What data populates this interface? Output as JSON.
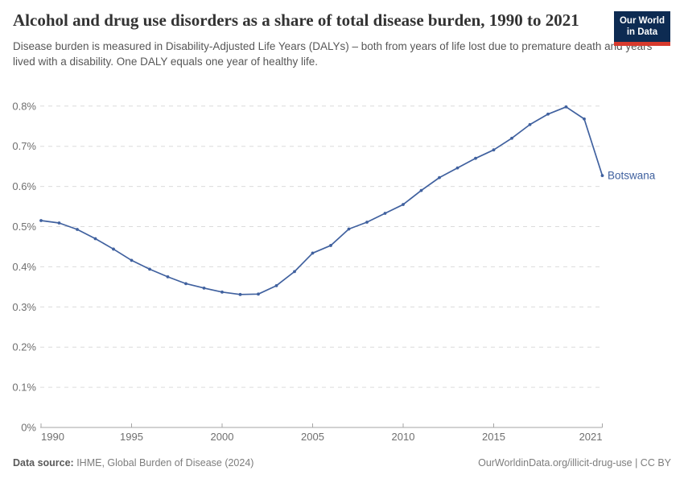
{
  "header": {
    "logo": {
      "line1": "Our World",
      "line2": "in Data",
      "bg_color": "#0d2b52",
      "accent_color": "#d73a2d"
    }
  },
  "chart_data": {
    "type": "line",
    "title": "Alcohol and drug use disorders as a share of total disease burden, 1990 to 2021",
    "subtitle": "Disease burden is measured in Disability-Adjusted Life Years (DALYs) – both from years of life lost due to premature death and years lived with a disability. One DALY equals one year of healthy life.",
    "series": [
      {
        "name": "Botswana",
        "color": "#40619f",
        "x": [
          1990,
          1991,
          1992,
          1993,
          1994,
          1995,
          1996,
          1997,
          1998,
          1999,
          2000,
          2001,
          2002,
          2003,
          2004,
          2005,
          2006,
          2007,
          2008,
          2009,
          2010,
          2011,
          2012,
          2013,
          2014,
          2015,
          2016,
          2017,
          2018,
          2019,
          2020,
          2021
        ],
        "values": [
          0.515,
          0.509,
          0.493,
          0.47,
          0.444,
          0.416,
          0.394,
          0.375,
          0.358,
          0.347,
          0.337,
          0.331,
          0.332,
          0.353,
          0.388,
          0.434,
          0.453,
          0.494,
          0.511,
          0.533,
          0.555,
          0.59,
          0.622,
          0.646,
          0.67,
          0.691,
          0.72,
          0.754,
          0.78,
          0.798,
          0.768,
          0.627
        ]
      }
    ],
    "xlim": [
      1990,
      2021
    ],
    "ylim": [
      0,
      0.8
    ],
    "x_ticks": [
      1990,
      1995,
      2000,
      2005,
      2010,
      2015,
      2021
    ],
    "y_ticks": [
      {
        "value": 0.0,
        "label": "0%"
      },
      {
        "value": 0.1,
        "label": "0.1%"
      },
      {
        "value": 0.2,
        "label": "0.2%"
      },
      {
        "value": 0.3,
        "label": "0.3%"
      },
      {
        "value": 0.4,
        "label": "0.4%"
      },
      {
        "value": 0.5,
        "label": "0.5%"
      },
      {
        "value": 0.6,
        "label": "0.6%"
      },
      {
        "value": 0.7,
        "label": "0.7%"
      },
      {
        "value": 0.8,
        "label": "0.8%"
      }
    ],
    "grid": "horizontal-dashed",
    "legend_position": "end-of-line-label",
    "grid_color": "#dcdcdc",
    "axis_color": "#a5a5a5",
    "tick_label_color": "#6f6f6f"
  },
  "footer": {
    "datasource_label": "Data source:",
    "datasource_value": " IHME, Global Burden of Disease (2024)",
    "rights": "OurWorldinData.org/illicit-drug-use | CC BY"
  }
}
